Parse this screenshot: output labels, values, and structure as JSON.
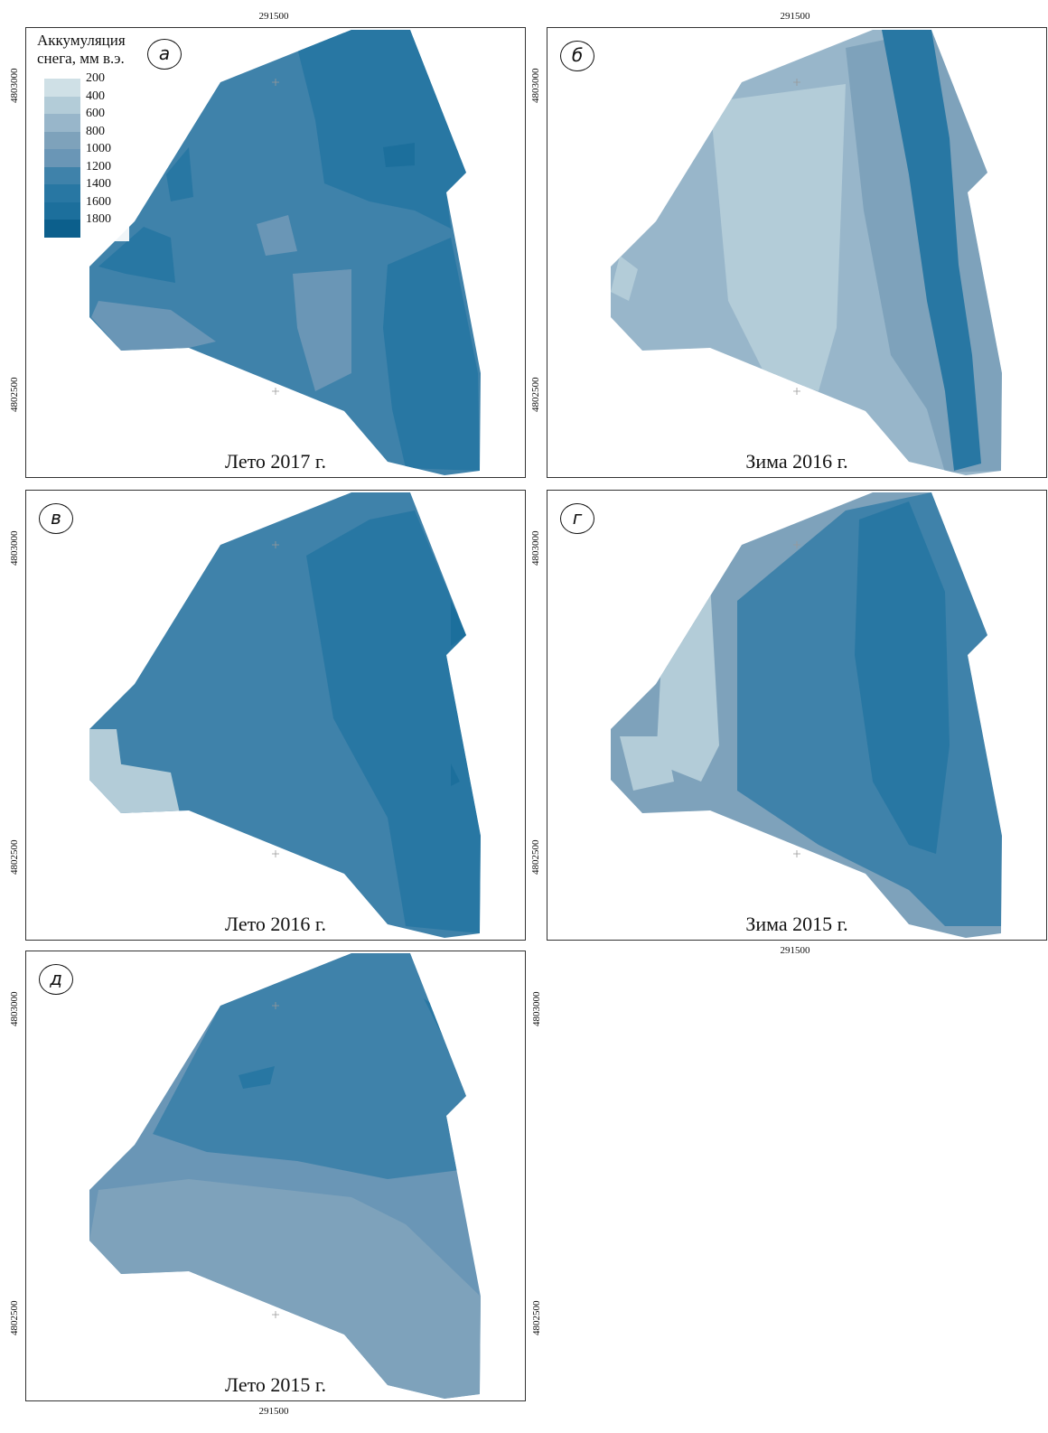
{
  "legend": {
    "title_line1": "Аккумуляция",
    "title_line2": "снега, мм в.э.",
    "levels": [
      "200",
      "400",
      "600",
      "800",
      "1000",
      "1200",
      "1400",
      "1600",
      "1800"
    ],
    "colors": [
      "#cfe0e6",
      "#b3ccd8",
      "#98b6ca",
      "#7ea2bb",
      "#6a96b6",
      "#3f82aa",
      "#2877a3",
      "#1c6f9c",
      "#0c5f8c"
    ]
  },
  "axes": {
    "easting": "291500",
    "northing_upper": "4803000",
    "northing_lower": "4802500"
  },
  "panels": [
    {
      "letter": "а",
      "caption": "Лето 2017 г.",
      "base_level": 5,
      "mid_level": 6,
      "deep_level": 7,
      "low_level": 4
    },
    {
      "letter": "б",
      "caption": "Зима 2016 г.",
      "base_level": 2,
      "mid_level": 3,
      "deep_level": 6,
      "low_level": 1
    },
    {
      "letter": "в",
      "caption": "Лето 2016 г.",
      "base_level": 5,
      "mid_level": 6,
      "deep_level": 7,
      "low_level": 1
    },
    {
      "letter": "г",
      "caption": "Зима 2015 г.",
      "base_level": 3,
      "mid_level": 5,
      "deep_level": 6,
      "low_level": 1
    },
    {
      "letter": "д",
      "caption": "Лето 2015 г.",
      "base_level": 4,
      "mid_level": 5,
      "deep_level": 6,
      "low_level": 3
    }
  ]
}
